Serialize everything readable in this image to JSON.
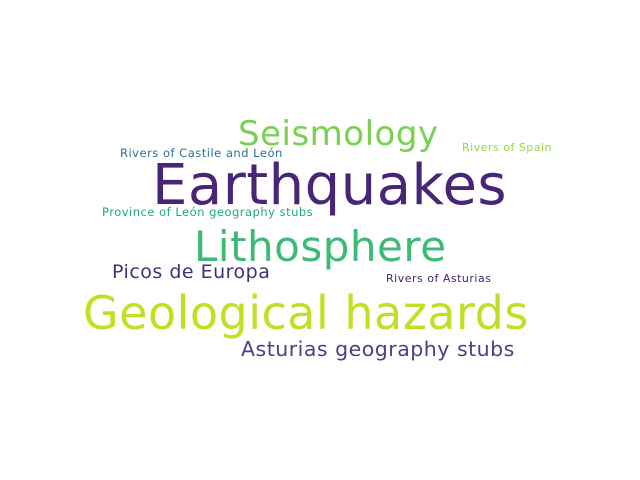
{
  "words": [
    {
      "id": "seismology",
      "text": "Seismology",
      "color": "#7ad151"
    },
    {
      "id": "rivers_castile",
      "text": "Rivers of Castile and León",
      "color": "#2c728e"
    },
    {
      "id": "rivers_spain",
      "text": "Rivers of Spain",
      "color": "#95d840"
    },
    {
      "id": "earthquakes",
      "text": "Earthquakes",
      "color": "#482576"
    },
    {
      "id": "province_leon",
      "text": "Province of León geography stubs",
      "color": "#21a685"
    },
    {
      "id": "lithosphere",
      "text": "Lithosphere",
      "color": "#3bbb75"
    },
    {
      "id": "picos",
      "text": "Picos de Europa",
      "color": "#472d7b"
    },
    {
      "id": "rivers_asturias",
      "text": "Rivers of Asturias",
      "color": "#482374"
    },
    {
      "id": "geological",
      "text": "Geological hazards",
      "color": "#c2df23"
    },
    {
      "id": "asturias_stubs",
      "text": "Asturias geography stubs",
      "color": "#414487"
    }
  ]
}
